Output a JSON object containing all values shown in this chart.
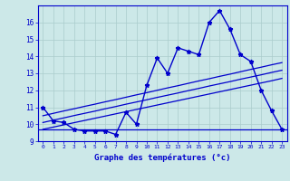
{
  "title": "Graphe des températures (°c)",
  "x_hours": [
    0,
    1,
    2,
    3,
    4,
    5,
    6,
    7,
    8,
    9,
    10,
    11,
    12,
    13,
    14,
    15,
    16,
    17,
    18,
    19,
    20,
    21,
    22,
    23
  ],
  "temp_main": [
    11.0,
    10.2,
    10.1,
    9.7,
    9.6,
    9.6,
    9.6,
    9.4,
    10.7,
    10.0,
    12.3,
    13.9,
    13.0,
    14.5,
    14.3,
    14.1,
    16.0,
    16.7,
    15.6,
    14.1,
    13.7,
    12.0,
    10.8,
    9.7
  ],
  "trend_upper": [
    10.5,
    10.64,
    10.78,
    10.91,
    11.05,
    11.18,
    11.32,
    11.45,
    11.59,
    11.73,
    11.86,
    12.0,
    12.14,
    12.27,
    12.41,
    12.55,
    12.68,
    12.82,
    12.95,
    13.09,
    13.23,
    13.36,
    13.5,
    13.63
  ],
  "trend_mid": [
    10.1,
    10.24,
    10.37,
    10.51,
    10.64,
    10.77,
    10.91,
    11.04,
    11.18,
    11.31,
    11.44,
    11.58,
    11.71,
    11.84,
    11.98,
    12.11,
    12.25,
    12.38,
    12.51,
    12.65,
    12.78,
    12.91,
    13.05,
    13.18
  ],
  "trend_lower": [
    9.7,
    9.83,
    9.96,
    10.09,
    10.22,
    10.35,
    10.48,
    10.61,
    10.74,
    10.87,
    11.0,
    11.13,
    11.26,
    11.39,
    11.52,
    11.65,
    11.78,
    11.91,
    12.04,
    12.17,
    12.3,
    12.43,
    12.56,
    12.7
  ],
  "hline_y": 9.7,
  "bg_color": "#cce8e8",
  "grid_color": "#aacccc",
  "line_color": "#0000cc",
  "ylim": [
    9.0,
    17.0
  ],
  "xlim_min": -0.5,
  "xlim_max": 23.5,
  "yticks": [
    9,
    10,
    11,
    12,
    13,
    14,
    15,
    16
  ],
  "xticks": [
    0,
    1,
    2,
    3,
    4,
    5,
    6,
    7,
    8,
    9,
    10,
    11,
    12,
    13,
    14,
    15,
    16,
    17,
    18,
    19,
    20,
    21,
    22,
    23
  ]
}
